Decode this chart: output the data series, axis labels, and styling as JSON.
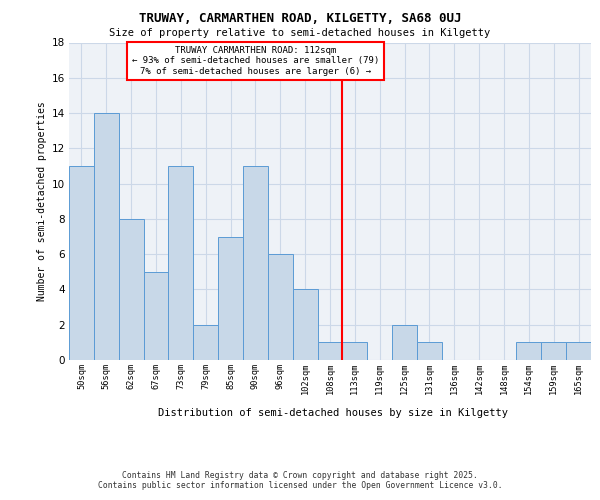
{
  "title": "TRUWAY, CARMARTHEN ROAD, KILGETTY, SA68 0UJ",
  "subtitle": "Size of property relative to semi-detached houses in Kilgetty",
  "xlabel": "Distribution of semi-detached houses by size in Kilgetty",
  "ylabel": "Number of semi-detached properties",
  "categories": [
    "50sqm",
    "56sqm",
    "62sqm",
    "67sqm",
    "73sqm",
    "79sqm",
    "85sqm",
    "90sqm",
    "96sqm",
    "102sqm",
    "108sqm",
    "113sqm",
    "119sqm",
    "125sqm",
    "131sqm",
    "136sqm",
    "142sqm",
    "148sqm",
    "154sqm",
    "159sqm",
    "165sqm"
  ],
  "values": [
    11,
    14,
    8,
    5,
    11,
    2,
    7,
    11,
    6,
    4,
    1,
    1,
    0,
    2,
    1,
    0,
    0,
    0,
    1,
    1,
    1
  ],
  "bar_color": "#c8d8e8",
  "bar_edge_color": "#5b9bd5",
  "red_line_index": 11,
  "annotation_title": "TRUWAY CARMARTHEN ROAD: 112sqm",
  "annotation_line1": "← 93% of semi-detached houses are smaller (79)",
  "annotation_line2": "7% of semi-detached houses are larger (6) →",
  "ylim": [
    0,
    18
  ],
  "yticks": [
    0,
    2,
    4,
    6,
    8,
    10,
    12,
    14,
    16,
    18
  ],
  "footer": "Contains HM Land Registry data © Crown copyright and database right 2025.\nContains public sector information licensed under the Open Government Licence v3.0.",
  "bg_color": "#eef2f7",
  "grid_color": "#ccd8e8"
}
